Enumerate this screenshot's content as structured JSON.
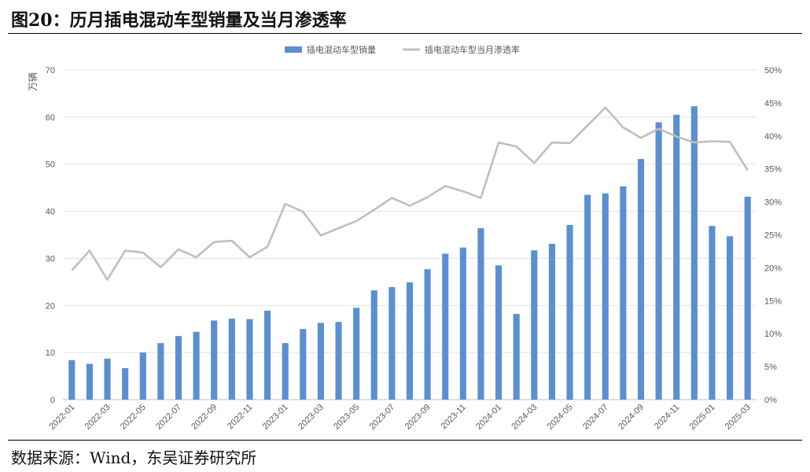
{
  "title": "图20：历月插电混动车型销量及当月渗透率",
  "source": "数据来源：Wind，东吴证券研究所",
  "chart_data": {
    "type": "bar",
    "y_unit_label": "万辆",
    "categories": [
      "2022-01",
      "2022-02",
      "2022-03",
      "2022-04",
      "2022-05",
      "2022-06",
      "2022-07",
      "2022-08",
      "2022-09",
      "2022-10",
      "2022-11",
      "2022-12",
      "2023-01",
      "2023-02",
      "2023-03",
      "2023-04",
      "2023-05",
      "2023-06",
      "2023-07",
      "2023-08",
      "2023-09",
      "2023-10",
      "2023-11",
      "2023-12",
      "2024-01",
      "2024-02",
      "2024-03",
      "2024-04",
      "2024-05",
      "2024-06",
      "2024-07",
      "2024-08",
      "2024-09",
      "2024-10",
      "2024-11",
      "2024-12",
      "2025-01",
      "2025-02",
      "2025-03"
    ],
    "x_tick_labels": [
      "2022-01",
      "2022-03",
      "2022-05",
      "2022-07",
      "2022-09",
      "2022-11",
      "2023-01",
      "2023-03",
      "2023-05",
      "2023-07",
      "2023-09",
      "2023-11",
      "2024-01",
      "2024-03",
      "2024-05",
      "2024-07",
      "2024-09",
      "2024-11",
      "2025-01",
      "2025-03"
    ],
    "series": [
      {
        "name": "插电混动车型销量",
        "type": "bar",
        "axis": "left",
        "color": "#5b8fd0",
        "values": [
          8.4,
          7.6,
          8.7,
          6.7,
          10.0,
          12.0,
          13.5,
          14.4,
          16.8,
          17.2,
          17.1,
          18.9,
          12.0,
          15.0,
          16.3,
          16.5,
          19.5,
          23.2,
          23.9,
          24.9,
          27.7,
          31.0,
          32.3,
          36.4,
          28.5,
          18.2,
          31.7,
          33.1,
          37.1,
          43.5,
          43.8,
          45.3,
          51.1,
          58.9,
          60.5,
          62.3,
          36.9,
          34.7,
          43.1
        ]
      },
      {
        "name": "插电混动车型当月渗透率",
        "type": "line",
        "axis": "right",
        "color": "#bfbfbf",
        "values": [
          0.196,
          0.226,
          0.182,
          0.226,
          0.223,
          0.201,
          0.228,
          0.216,
          0.239,
          0.241,
          0.216,
          0.232,
          0.297,
          0.285,
          0.249,
          0.26,
          0.271,
          0.288,
          0.306,
          0.294,
          0.307,
          0.324,
          0.316,
          0.306,
          0.39,
          0.384,
          0.359,
          0.39,
          0.389,
          0.416,
          0.443,
          0.413,
          0.397,
          0.411,
          0.399,
          0.39,
          0.392,
          0.391,
          0.348
        ]
      }
    ],
    "y_left": {
      "min": 0,
      "max": 70,
      "ticks": [
        0,
        10,
        20,
        30,
        40,
        50,
        60,
        70
      ]
    },
    "y_right": {
      "min": 0,
      "max": 0.5,
      "tick_labels": [
        "0%",
        "5%",
        "10%",
        "15%",
        "20%",
        "25%",
        "30%",
        "35%",
        "40%",
        "45%",
        "50%"
      ]
    },
    "grid": true,
    "legend_position": "top-center"
  }
}
